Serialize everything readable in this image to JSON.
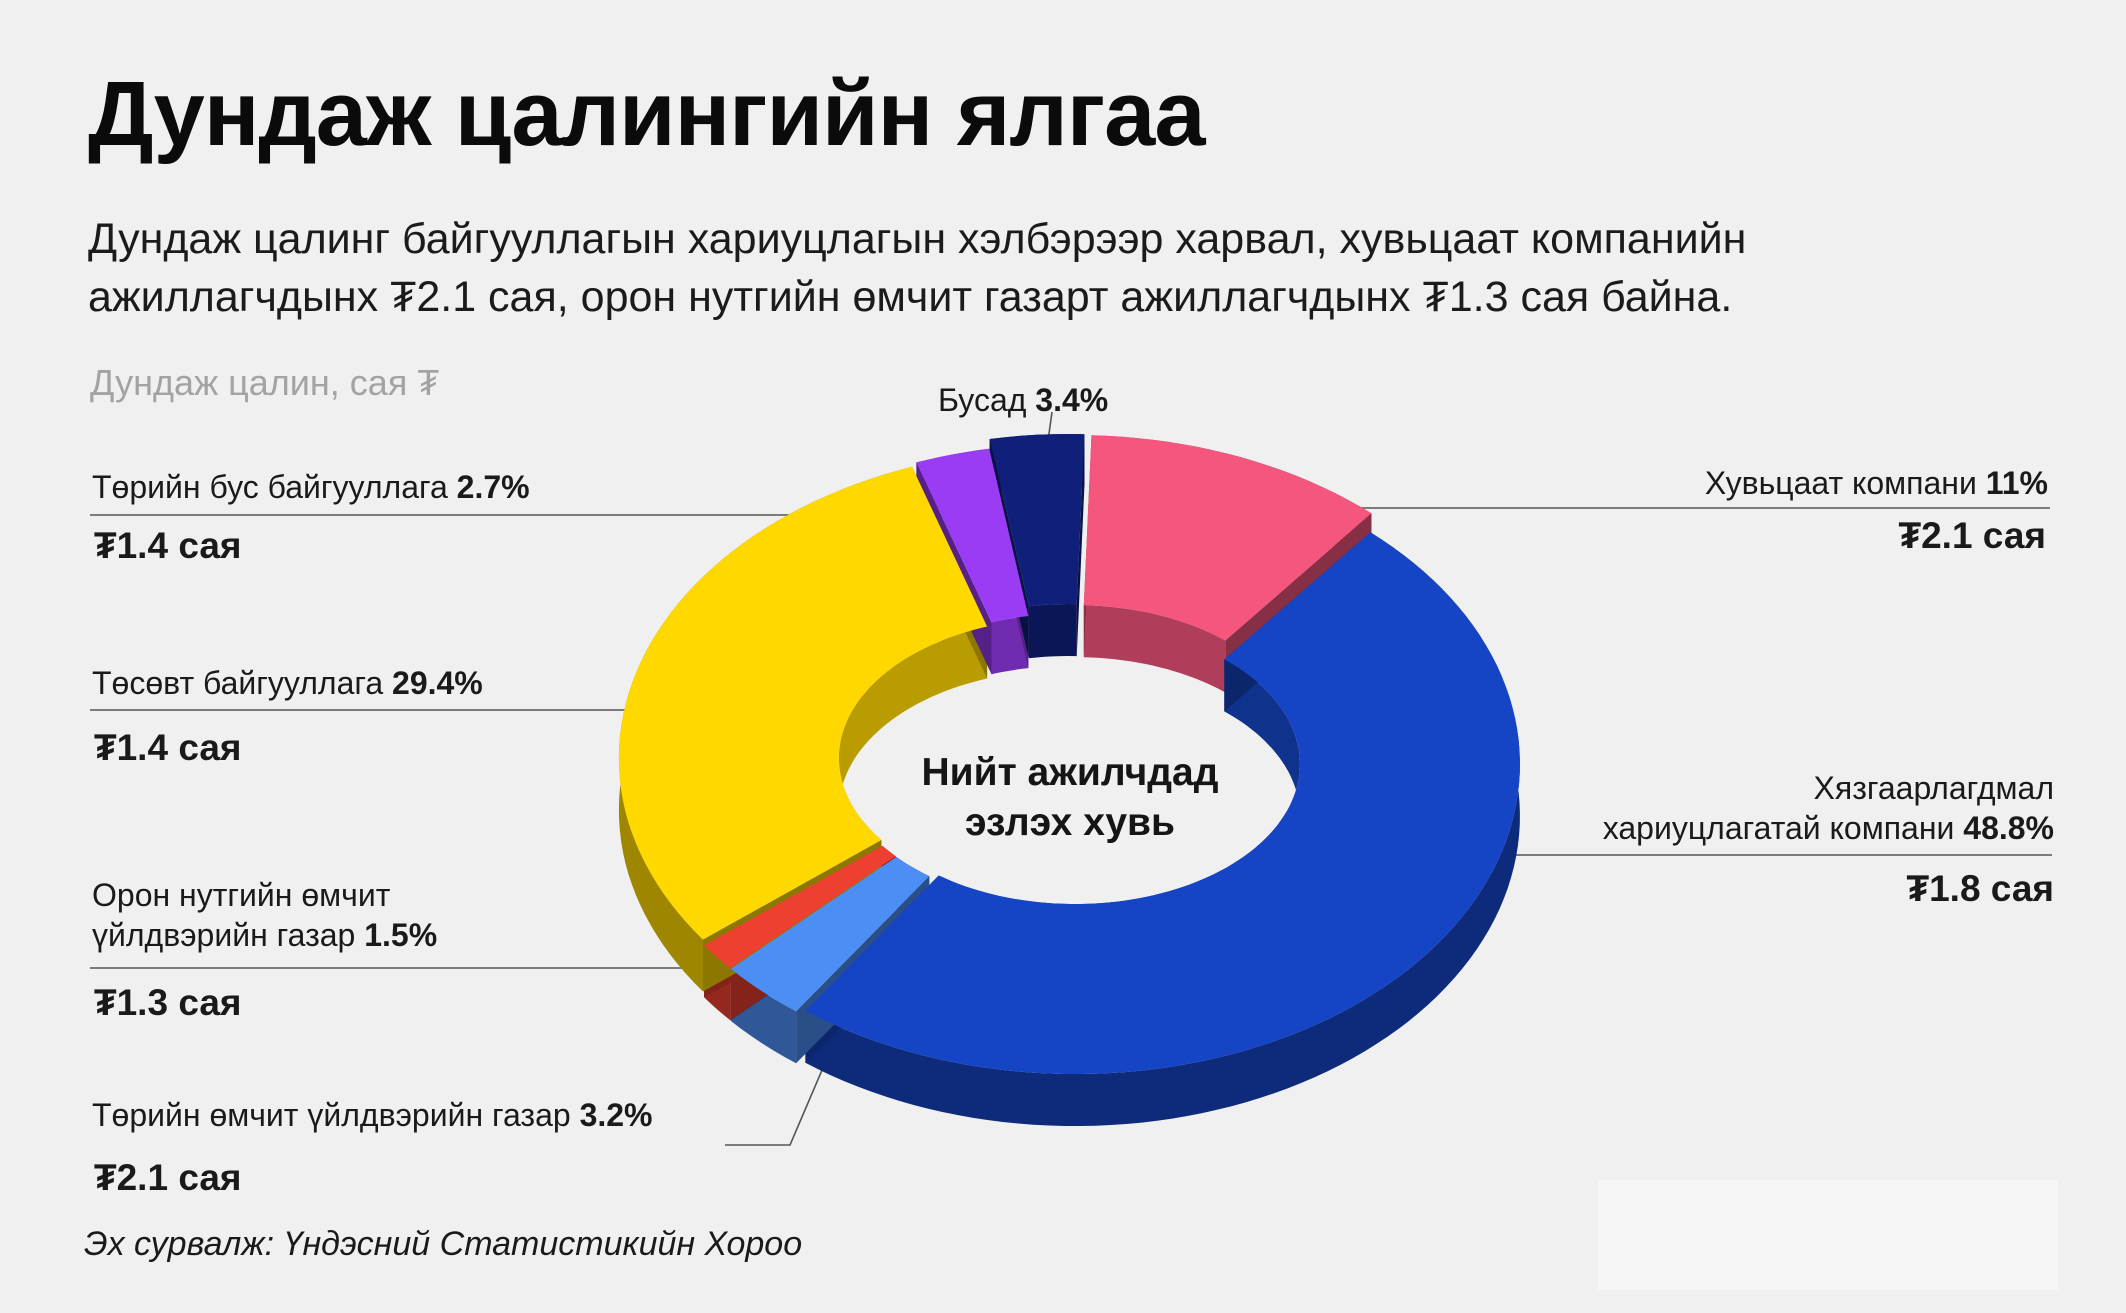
{
  "title": "Дундаж цалингийн ялгаа",
  "subtitle_line1": "Дундаж цалинг байгууллагын хариуцлагын хэлбэрээр харвал, хувьцаат компанийн",
  "subtitle_line2": "ажиллагчдынх ₮2.1 сая, орон нутгийн өмчит газарт ажиллагчдынх ₮1.3 сая байна.",
  "unit_label": "Дундаж цалин, сая ₮",
  "center_label_line1": "Нийт ажилчдад",
  "center_label_line2": "эзлэх хувь",
  "source": "Эх сурвалж: Үндэсний Статистикийн Хороо",
  "labels": {
    "busad": {
      "name": "Бусад",
      "pct": "3.4%"
    },
    "huvitsaat": {
      "name": "Хувьцаат компани",
      "pct": "11%",
      "value": "₮2.1 сая"
    },
    "hyazgaar": {
      "name1": "Хязгаарлагдмал",
      "name2": "хариуцлагатай компани",
      "pct": "48.8%",
      "value": "₮1.8 сая"
    },
    "toriin_bus": {
      "name": "Төрийн бус байгууллага",
      "pct": "2.7%",
      "value": "₮1.4 сая"
    },
    "tosovt": {
      "name": "Төсөвт байгууллага",
      "pct": "29.4%",
      "value": "₮1.4 сая"
    },
    "oron_nutag": {
      "name1": "Орон нутгийн өмчит",
      "name2": "үйлдвэрийн газар",
      "pct": "1.5%",
      "value": "₮1.3 сая"
    },
    "toriin_omchit": {
      "name": "Төрийн өмчит үйлдвэрийн газар",
      "pct": "3.2%",
      "value": "₮2.1 сая"
    }
  },
  "chart_data": {
    "type": "pie",
    "style": "3d-donut",
    "title": "Дундаж цалингийн ялгаа",
    "center_label": "Нийт ажилчдад эзлэх хувь",
    "unit": "Дундаж цалин, сая ₮",
    "slices": [
      {
        "name": "Хувьцаат компани",
        "share_pct": 11,
        "avg_salary": 2.1,
        "color": "#f5567d"
      },
      {
        "name": "Хязгаарлагдмал хариуцлагатай компани",
        "share_pct": 48.8,
        "avg_salary": 1.8,
        "color": "#1545c4"
      },
      {
        "name": "Төрийн өмчит үйлдвэрийн газар",
        "share_pct": 3.2,
        "avg_salary": 2.1,
        "color": "#4d8ef5"
      },
      {
        "name": "Орон нутгийн өмчит үйлдвэрийн газар",
        "share_pct": 1.5,
        "avg_salary": 1.3,
        "color": "#ee4030"
      },
      {
        "name": "Төсөвт байгууллага",
        "share_pct": 29.4,
        "avg_salary": 1.4,
        "color": "#ffd800"
      },
      {
        "name": "Төрийн бус байгууллага",
        "share_pct": 2.7,
        "avg_salary": 1.4,
        "color": "#9b3cf5"
      },
      {
        "name": "Бусад",
        "share_pct": 3.4,
        "avg_salary": null,
        "color": "#0f1f7a"
      }
    ]
  }
}
